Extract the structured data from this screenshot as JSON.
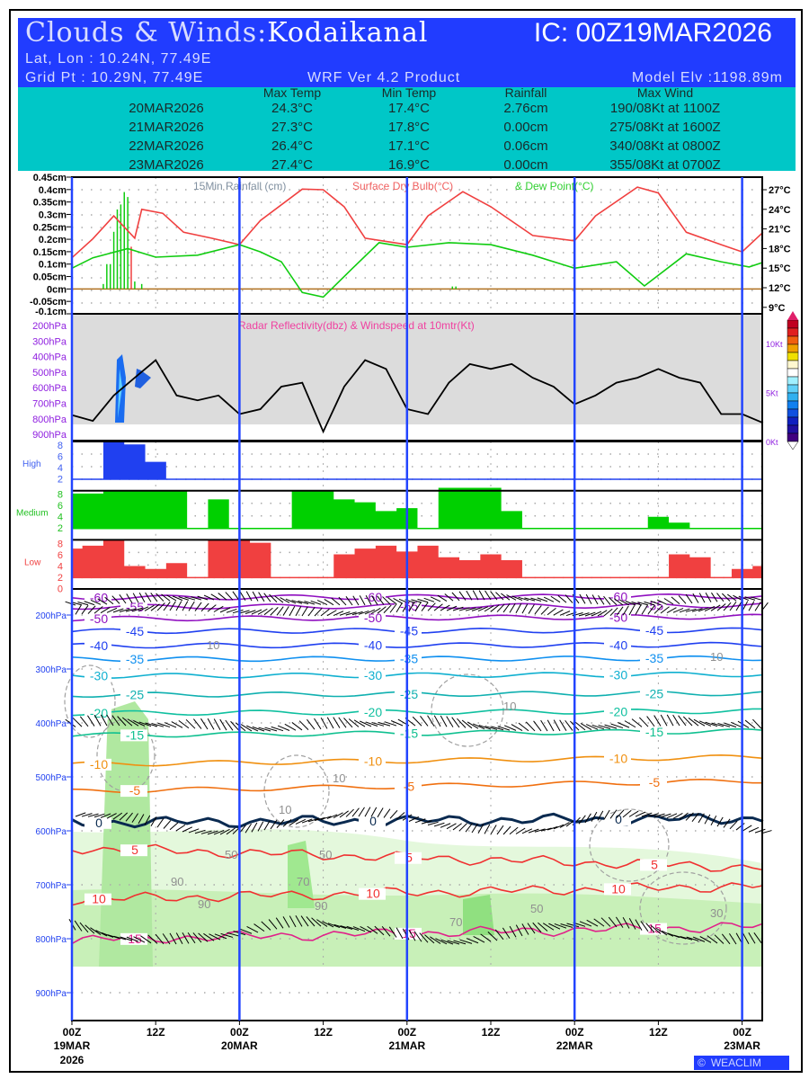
{
  "header": {
    "title_prefix": "Clouds & Winds:",
    "location": "Kodaikanal",
    "ic": "IC: 00Z19MAR2026",
    "latlon": "Lat, Lon : 10.24N, 77.49E",
    "gridpt": "Grid Pt  : 10.29N, 77.49E",
    "product": "WRF Ver 4.2 Product",
    "elevation": "Model Elv :1198.89m"
  },
  "summary": {
    "columns": [
      "Max Temp",
      "Min Temp",
      "Rainfall",
      "Max Wind"
    ],
    "rows": [
      {
        "date": "20MAR2026",
        "max": "24.3°C",
        "min": "17.4°C",
        "rain": "2.76cm",
        "wind": "190/08Kt at 1100Z"
      },
      {
        "date": "21MAR2026",
        "max": "27.3°C",
        "min": "17.8°C",
        "rain": "0.00cm",
        "wind": "275/08Kt at 1600Z"
      },
      {
        "date": "22MAR2026",
        "max": "26.4°C",
        "min": "17.1°C",
        "rain": "0.06cm",
        "wind": "340/08Kt at 0800Z"
      },
      {
        "date": "23MAR2026",
        "max": "27.4°C",
        "min": "16.9°C",
        "rain": "0.00cm",
        "wind": "355/08Kt at 0700Z"
      }
    ]
  },
  "colors": {
    "temp": "#f04040",
    "dew": "#10cc10",
    "rain": "#10cc10",
    "high": "#2040f0",
    "medium": "#00d000",
    "low": "#f04040",
    "day_line": "#2244ff",
    "wind": "#000000"
  },
  "chart_data": [
    {
      "type": "line",
      "title_parts": [
        "15Min Rainfall (cm)",
        "Surface Dry Bulb(°C)",
        "& Dew Point(°C)"
      ],
      "ylabel_left_ticks": [
        "0.45cm",
        "0.4cm",
        "0.35cm",
        "0.3cm",
        "0.25cm",
        "0.2cm",
        "0.15cm",
        "0.1cm",
        "0.05cm",
        "0cm",
        "-0.05cm",
        "-0.1cm"
      ],
      "ylim_rain": [
        -0.1,
        0.45
      ],
      "ylabel_right_ticks": [
        "27°C",
        "24°C",
        "21°C",
        "18°C",
        "15°C",
        "12°C",
        "9°C"
      ],
      "ylim_temp": [
        7.5,
        29
      ],
      "rain": [
        [
          4.5,
          0.02
        ],
        [
          5,
          0.1
        ],
        [
          5.5,
          0.1
        ],
        [
          6,
          0.23
        ],
        [
          6.5,
          0.32
        ],
        [
          7,
          0.34
        ],
        [
          7.5,
          0.39
        ],
        [
          8,
          0.37
        ],
        [
          8.5,
          0.17
        ],
        [
          9,
          0.03
        ],
        [
          10,
          0.02
        ],
        [
          54.5,
          0.01
        ],
        [
          55,
          0.01
        ]
      ],
      "temperature": [
        [
          0,
          16.6
        ],
        [
          3,
          19.5
        ],
        [
          6,
          23
        ],
        [
          9,
          19.6
        ],
        [
          10,
          24
        ],
        [
          13,
          23.4
        ],
        [
          16,
          20.5
        ],
        [
          20,
          19.6
        ],
        [
          24,
          18.6
        ],
        [
          27,
          22.3
        ],
        [
          33,
          27.1
        ],
        [
          36,
          27
        ],
        [
          39,
          24.4
        ],
        [
          42,
          19.6
        ],
        [
          48,
          18.6
        ],
        [
          51,
          23
        ],
        [
          56,
          26.7
        ],
        [
          60,
          24.4
        ],
        [
          66,
          20
        ],
        [
          72,
          19.2
        ],
        [
          75,
          23
        ],
        [
          81,
          27.4
        ],
        [
          84,
          26.5
        ],
        [
          88,
          20.5
        ],
        [
          93,
          18.6
        ],
        [
          96,
          17.5
        ],
        [
          99,
          20.5
        ]
      ],
      "dew_point": [
        [
          0,
          15
        ],
        [
          3,
          16.6
        ],
        [
          8,
          18
        ],
        [
          12,
          16.7
        ],
        [
          18,
          17
        ],
        [
          24,
          18.6
        ],
        [
          27,
          17.5
        ],
        [
          30,
          16
        ],
        [
          33,
          11.3
        ],
        [
          36,
          10.6
        ],
        [
          40,
          14.8
        ],
        [
          44,
          18.9
        ],
        [
          48,
          18.2
        ],
        [
          54,
          18.9
        ],
        [
          60,
          18.6
        ],
        [
          66,
          17
        ],
        [
          72,
          15
        ],
        [
          78,
          16
        ],
        [
          82,
          12.3
        ],
        [
          88,
          17.2
        ],
        [
          93,
          16
        ],
        [
          97,
          15.2
        ],
        [
          99,
          15.9
        ]
      ]
    },
    {
      "type": "line",
      "title": "Radar Reflectivity(dbz) & Windspeed at 10mtr(Kt)",
      "ylabel_left_ticks": [
        "200hPa",
        "300hPa",
        "400hPa",
        "500hPa",
        "600hPa",
        "700hPa",
        "800hPa",
        "900hPa"
      ],
      "ylabel_right_ticks": [
        "10Kt",
        "5Kt",
        "0Kt"
      ],
      "ylim_wind": [
        0,
        10
      ],
      "wind_hours_step": 3,
      "wind_speed": [
        2.7,
        2.1,
        4.7,
        6.5,
        8.3,
        4.7,
        4.2,
        4.7,
        2.8,
        3.3,
        5.6,
        6,
        1,
        5.6,
        8.3,
        7.4,
        3.3,
        2.8,
        6,
        7.9,
        7.4,
        7.9,
        6.5,
        5.6,
        3.8,
        4.7,
        6,
        6.5,
        7.4,
        6.5,
        6,
        2.8,
        2.8,
        1.9
      ]
    },
    {
      "type": "area",
      "hours_step": 3,
      "ylim": [
        0,
        8
      ],
      "ticks": [
        "8",
        "6",
        "4",
        "2",
        "0"
      ],
      "series": [
        {
          "name": "High",
          "values": [
            0,
            0,
            6.5,
            6,
            3,
            0,
            0,
            0,
            0,
            0,
            0,
            0,
            0,
            0,
            0,
            0,
            0,
            0,
            0,
            0,
            0,
            0,
            0,
            0,
            0,
            0,
            0,
            0,
            0,
            0,
            0,
            0,
            0,
            0
          ]
        },
        {
          "name": "Medium",
          "values": [
            6,
            6,
            6.5,
            6.5,
            6.5,
            6.5,
            0,
            5,
            0,
            0,
            0,
            6.5,
            6.5,
            5,
            4.5,
            3,
            3.5,
            0,
            7,
            7,
            7,
            3,
            0,
            0,
            0,
            0,
            0,
            0,
            2,
            1,
            0,
            0,
            0,
            0
          ]
        },
        {
          "name": "Low",
          "values": [
            5,
            5.5,
            6.5,
            2,
            1.5,
            2.5,
            0,
            6.5,
            6.5,
            6,
            0,
            0,
            0,
            4,
            5,
            5.5,
            4.5,
            5.5,
            3.5,
            3,
            4,
            3,
            0,
            0,
            0,
            0,
            0,
            0,
            0,
            4,
            3.5,
            0,
            1.5,
            2
          ]
        }
      ]
    },
    {
      "type": "contour",
      "ylabel_ticks": [
        "200hPa",
        "300hPa",
        "400hPa",
        "500hPa",
        "600hPa",
        "700hPa",
        "800hPa",
        "900hPa"
      ],
      "isotherms": [
        {
          "label": "-60",
          "p0": 168,
          "p1": 165,
          "color": "#9010c0"
        },
        {
          "label": "-55",
          "p0": 185,
          "p1": 182,
          "color": "#9010c0"
        },
        {
          "label": "-50",
          "p0": 207,
          "p1": 203,
          "color": "#9010c0"
        },
        {
          "label": "-45",
          "p0": 230,
          "p1": 228,
          "color": "#2040f0"
        },
        {
          "label": "-40",
          "p0": 257,
          "p1": 255,
          "color": "#2040f0"
        },
        {
          "label": "-35",
          "p0": 282,
          "p1": 280,
          "color": "#1090f0"
        },
        {
          "label": "-30",
          "p0": 313,
          "p1": 310,
          "color": "#10b0d0"
        },
        {
          "label": "-25",
          "p0": 348,
          "p1": 345,
          "color": "#10b0b0"
        },
        {
          "label": "-20",
          "p0": 382,
          "p1": 378,
          "color": "#10c0a0"
        },
        {
          "label": "-15",
          "p0": 423,
          "p1": 415,
          "color": "#10c090"
        },
        {
          "label": "-10",
          "p0": 477,
          "p1": 463,
          "color": "#f09010"
        },
        {
          "label": "-5",
          "p0": 527,
          "p1": 507,
          "color": "#f07010"
        },
        {
          "label": "0",
          "p0": 585,
          "p1": 577,
          "color": "#0a2a50"
        },
        {
          "label": "5",
          "p0": 632,
          "p1": 668,
          "color": "#f03030"
        },
        {
          "label": "10",
          "p0": 727,
          "p1": 702,
          "color": "#f03030"
        },
        {
          "label": "15",
          "p0": 802,
          "p1": 777,
          "color": "#e0208a"
        }
      ],
      "rh_labels": [
        "10",
        "10",
        "10",
        "10",
        "10",
        "30",
        "50",
        "50",
        "50",
        "70",
        "70",
        "90",
        "90",
        "90"
      ]
    }
  ],
  "x_axis": {
    "ticks": [
      {
        "hour": 0,
        "label": "00Z",
        "date": "19MAR",
        "year": "2026"
      },
      {
        "hour": 12,
        "label": "12Z"
      },
      {
        "hour": 24,
        "label": "00Z",
        "date": "20MAR"
      },
      {
        "hour": 36,
        "label": "12Z"
      },
      {
        "hour": 48,
        "label": "00Z",
        "date": "21MAR"
      },
      {
        "hour": 60,
        "label": "12Z"
      },
      {
        "hour": 72,
        "label": "00Z",
        "date": "22MAR"
      },
      {
        "hour": 84,
        "label": "12Z"
      },
      {
        "hour": 96,
        "label": "00Z",
        "date": "23MAR"
      }
    ]
  },
  "footer": {
    "brand": "WEACLIM"
  }
}
